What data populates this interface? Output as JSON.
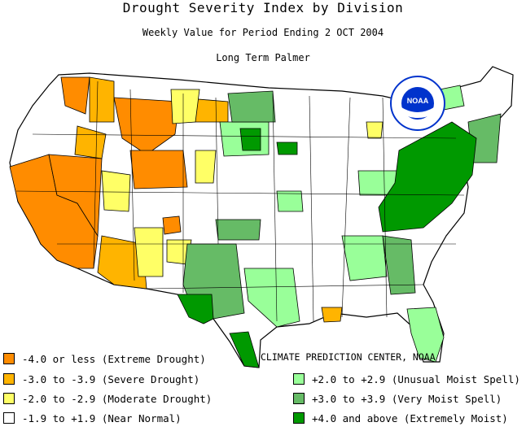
{
  "title": "Drought Severity Index by Division",
  "subtitle": "Weekly Value for Period Ending  2 OCT 2004",
  "index_name": "Long Term Palmer",
  "credit": "CLIMATE PREDICTION CENTER, NOAA",
  "logo_text": "NOAA",
  "colors": {
    "extreme_drought": "#ff8c00",
    "severe_drought": "#ffb400",
    "moderate_drought": "#ffff66",
    "near_normal": "#ffffff",
    "unusual_moist": "#99ff99",
    "very_moist": "#66bb66",
    "extremely_moist": "#009900"
  },
  "legend": [
    {
      "label": "-4.0 or less (Extreme Drought)",
      "color": "#ff8c00"
    },
    {
      "label": "-3.0 to -3.9 (Severe Drought)",
      "color": "#ffb400"
    },
    {
      "label": "-2.0 to -2.9 (Moderate Drought)",
      "color": "#ffff66"
    },
    {
      "label": "-1.9 to +1.9 (Near Normal)",
      "color": "#ffffff"
    },
    {
      "label": "+2.0 to +2.9 (Unusual Moist Spell)",
      "color": "#99ff99"
    },
    {
      "label": "+3.0 to +3.9 (Very Moist Spell)",
      "color": "#66bb66"
    },
    {
      "label": "+4.0 and above (Extremely Moist)",
      "color": "#009900"
    }
  ]
}
